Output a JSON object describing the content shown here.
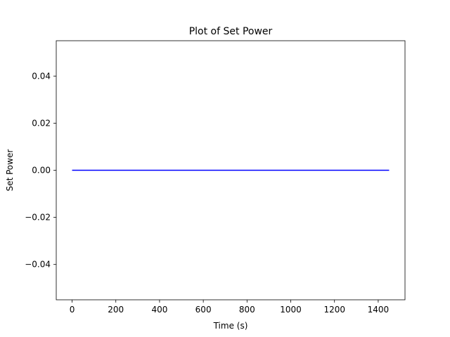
{
  "chart_data": {
    "type": "line",
    "title": "Plot of Set Power",
    "xlabel": "Time (s)",
    "ylabel": "Set Power",
    "xlim": [
      -72.5,
      1522.5
    ],
    "ylim": [
      -0.055,
      0.055
    ],
    "xticks": [
      0,
      200,
      400,
      600,
      800,
      1000,
      1200,
      1400
    ],
    "xtick_labels": [
      "0",
      "200",
      "400",
      "600",
      "800",
      "1000",
      "1200",
      "1400"
    ],
    "yticks": [
      -0.04,
      -0.02,
      0.0,
      0.02,
      0.04
    ],
    "ytick_labels": [
      "−0.04",
      "−0.02",
      "0.00",
      "0.02",
      "0.04"
    ],
    "grid": false,
    "series": [
      {
        "color": "#0000ff",
        "x": [
          0,
          1450
        ],
        "y": [
          0,
          0
        ]
      }
    ]
  }
}
